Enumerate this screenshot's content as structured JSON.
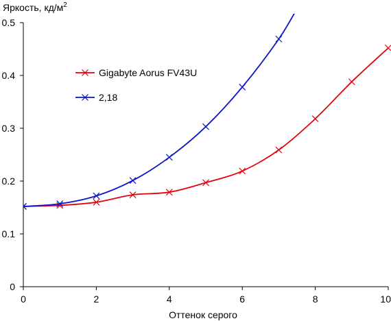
{
  "chart_data": {
    "type": "line",
    "title": "",
    "xlabel": "Оттенок серого",
    "ylabel": "Яркость, кд/м",
    "ylabel_superscript": "2",
    "xlim": [
      0,
      10
    ],
    "ylim": [
      0,
      0.5
    ],
    "xticks": [
      "0",
      "2",
      "4",
      "6",
      "8",
      "10"
    ],
    "xtick_values": [
      0,
      2,
      4,
      6,
      8,
      10
    ],
    "yticks": [
      "0",
      "0.1",
      "0.2",
      "0.3",
      "0.4",
      "0.5"
    ],
    "ytick_values": [
      0,
      0.1,
      0.2,
      0.3,
      0.4,
      0.5
    ],
    "grid": false,
    "legend_position": "upper-left inside plot",
    "series": [
      {
        "name": "Gigabyte Aorus FV43U",
        "color": "#e3000f",
        "marker": "x",
        "x": [
          0,
          1,
          2,
          3,
          4,
          5,
          6,
          7,
          8,
          9,
          10
        ],
        "y": [
          0.152,
          0.154,
          0.16,
          0.174,
          0.179,
          0.197,
          0.219,
          0.259,
          0.318,
          0.388,
          0.452
        ]
      },
      {
        "name": "2,18",
        "color": "#0a14c8",
        "marker": "x",
        "x": [
          0,
          1,
          2,
          3,
          4,
          5,
          6,
          7
        ],
        "y": [
          0.152,
          0.157,
          0.172,
          0.201,
          0.245,
          0.303,
          0.378,
          0.469
        ],
        "extends_past_top": true
      }
    ]
  }
}
